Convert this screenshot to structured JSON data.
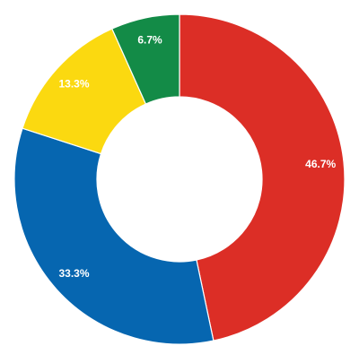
{
  "chart_data": {
    "type": "pie",
    "variant": "donut",
    "slices": [
      {
        "value": 46.7,
        "label": "46.7%",
        "color": "#dc2e26"
      },
      {
        "value": 33.3,
        "label": "33.3%",
        "color": "#0666b0"
      },
      {
        "value": 13.3,
        "label": "13.3%",
        "color": "#fbd910"
      },
      {
        "value": 6.7,
        "label": "6.7%",
        "color": "#138b47"
      }
    ],
    "start_angle_deg": 0,
    "direction": "clockwise"
  }
}
